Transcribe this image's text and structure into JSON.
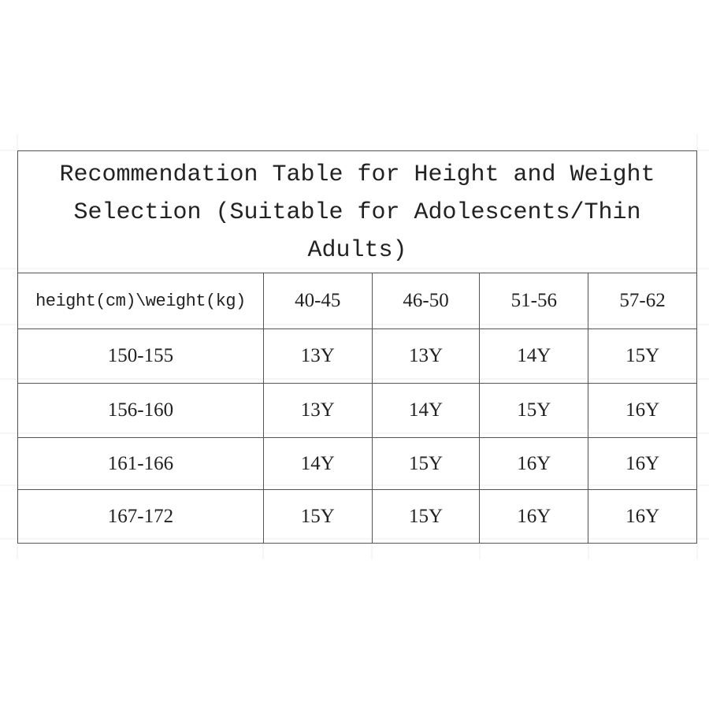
{
  "table": {
    "title": "Recommendation Table for Height and Weight Selection (Suitable for Adolescents/Thin Adults)",
    "corner_header": "height(cm)\\weight(kg)",
    "weight_ranges": [
      "40-45",
      "46-50",
      "51-56",
      "57-62"
    ],
    "rows": [
      {
        "height": "150-155",
        "sizes": [
          "13Y",
          "13Y",
          "14Y",
          "15Y"
        ]
      },
      {
        "height": "156-160",
        "sizes": [
          "13Y",
          "14Y",
          "15Y",
          "16Y"
        ]
      },
      {
        "height": "161-166",
        "sizes": [
          "14Y",
          "15Y",
          "16Y",
          "16Y"
        ]
      },
      {
        "height": "167-172",
        "sizes": [
          "15Y",
          "15Y",
          "16Y",
          "16Y"
        ]
      }
    ]
  }
}
